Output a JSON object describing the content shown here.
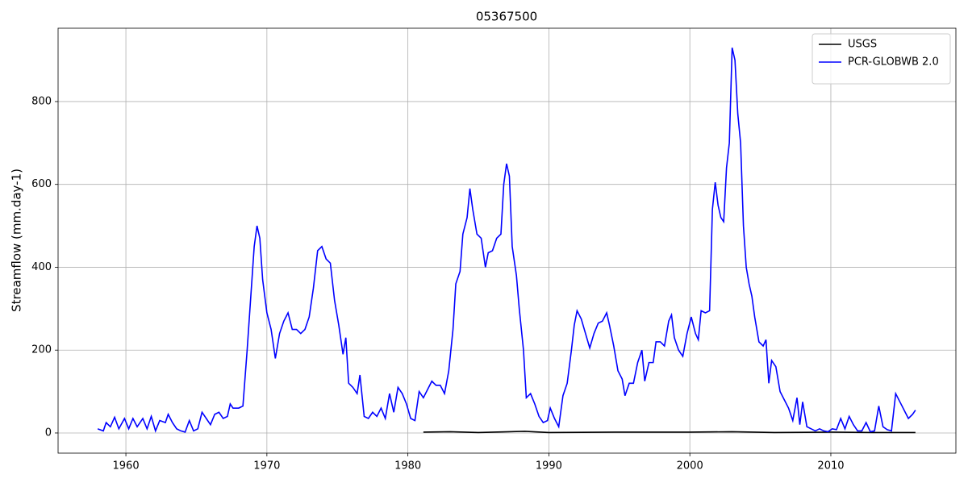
{
  "chart_data": {
    "type": "line",
    "title": "05367500",
    "y_label": "Streamflow (mm.day-1)",
    "xlim": [
      1955.19,
      2018.87
    ],
    "ylim": [
      -48.7,
      977
    ],
    "xticks": [
      1960,
      1970,
      1980,
      1990,
      2000,
      2010
    ],
    "yticks": [
      0,
      200,
      400,
      600,
      800
    ],
    "grid": true,
    "legend": "upper right",
    "series": [
      {
        "name": "USGS",
        "color": "#000000",
        "x": [
          1981.1,
          1983.0,
          1985.0,
          1988.3,
          1990.0,
          1995.0,
          2000.0,
          2003.0,
          2006.0,
          2010.0,
          2013.0,
          2016.0
        ],
        "values": [
          2,
          3,
          1,
          4,
          1,
          2,
          2,
          3,
          1,
          2,
          1,
          1
        ]
      },
      {
        "name": "PCR-GLOBWB 2.0",
        "color": "#0000ff",
        "x": [
          1958.0,
          1958.4,
          1958.6,
          1958.9,
          1959.2,
          1959.5,
          1959.9,
          1960.2,
          1960.5,
          1960.8,
          1961.2,
          1961.5,
          1961.8,
          1962.1,
          1962.4,
          1962.8,
          1963.0,
          1963.3,
          1963.6,
          1963.9,
          1964.2,
          1964.5,
          1964.8,
          1965.1,
          1965.4,
          1965.7,
          1966.0,
          1966.3,
          1966.6,
          1966.9,
          1967.2,
          1967.4,
          1967.6,
          1968.0,
          1968.3,
          1968.6,
          1968.9,
          1969.1,
          1969.3,
          1969.5,
          1969.7,
          1970.0,
          1970.3,
          1970.6,
          1970.9,
          1971.2,
          1971.5,
          1971.8,
          1972.1,
          1972.4,
          1972.7,
          1973.0,
          1973.3,
          1973.6,
          1973.9,
          1974.2,
          1974.5,
          1974.8,
          1975.1,
          1975.4,
          1975.6,
          1975.8,
          1976.1,
          1976.4,
          1976.6,
          1976.9,
          1977.2,
          1977.5,
          1977.8,
          1978.1,
          1978.4,
          1978.7,
          1979.0,
          1979.3,
          1979.6,
          1979.9,
          1980.2,
          1980.5,
          1980.8,
          1981.1,
          1981.4,
          1981.7,
          1982.0,
          1982.3,
          1982.6,
          1982.9,
          1983.2,
          1983.4,
          1983.7,
          1983.9,
          1984.2,
          1984.4,
          1984.6,
          1984.9,
          1985.2,
          1985.5,
          1985.7,
          1986.0,
          1986.3,
          1986.6,
          1986.8,
          1987.0,
          1987.2,
          1987.4,
          1987.7,
          1987.9,
          1988.2,
          1988.4,
          1988.7,
          1989.0,
          1989.3,
          1989.6,
          1989.9,
          1990.1,
          1990.4,
          1990.7,
          1991.0,
          1991.3,
          1991.6,
          1991.8,
          1992.0,
          1992.3,
          1992.6,
          1992.9,
          1993.2,
          1993.5,
          1993.8,
          1994.1,
          1994.3,
          1994.6,
          1994.9,
          1995.2,
          1995.4,
          1995.7,
          1996.0,
          1996.3,
          1996.6,
          1996.8,
          1997.1,
          1997.4,
          1997.6,
          1997.9,
          1998.2,
          1998.5,
          1998.7,
          1998.9,
          1999.2,
          1999.5,
          1999.8,
          2000.1,
          2000.4,
          2000.6,
          2000.8,
          2001.1,
          2001.4,
          2001.6,
          2001.8,
          2002.0,
          2002.2,
          2002.4,
          2002.6,
          2002.8,
          2003.0,
          2003.2,
          2003.4,
          2003.6,
          2003.8,
          2004.0,
          2004.2,
          2004.4,
          2004.6,
          2004.9,
          2005.2,
          2005.4,
          2005.6,
          2005.8,
          2006.1,
          2006.4,
          2006.7,
          2007.0,
          2007.3,
          2007.6,
          2007.8,
          2008.0,
          2008.3,
          2008.6,
          2008.9,
          2009.2,
          2009.5,
          2009.8,
          2010.1,
          2010.4,
          2010.7,
          2011.0,
          2011.3,
          2011.6,
          2011.9,
          2012.2,
          2012.5,
          2012.8,
          2013.1,
          2013.4,
          2013.7,
          2014.0,
          2014.3,
          2014.6,
          2014.9,
          2015.2,
          2015.5,
          2015.8,
          2016.0
        ],
        "values": [
          10,
          5,
          25,
          15,
          38,
          10,
          35,
          10,
          35,
          15,
          35,
          10,
          40,
          5,
          30,
          25,
          45,
          25,
          10,
          5,
          2,
          30,
          5,
          10,
          50,
          35,
          20,
          45,
          50,
          35,
          40,
          70,
          60,
          60,
          65,
          200,
          350,
          450,
          500,
          470,
          370,
          290,
          250,
          180,
          240,
          270,
          290,
          250,
          250,
          240,
          250,
          280,
          350,
          440,
          450,
          420,
          410,
          320,
          260,
          190,
          230,
          120,
          110,
          95,
          140,
          40,
          35,
          50,
          40,
          60,
          35,
          95,
          50,
          110,
          95,
          70,
          35,
          30,
          100,
          85,
          105,
          125,
          115,
          115,
          95,
          150,
          250,
          360,
          390,
          480,
          520,
          590,
          540,
          480,
          470,
          400,
          435,
          440,
          470,
          480,
          600,
          650,
          620,
          450,
          380,
          300,
          200,
          85,
          95,
          70,
          40,
          25,
          30,
          60,
          35,
          15,
          90,
          120,
          200,
          260,
          295,
          275,
          240,
          205,
          240,
          265,
          270,
          290,
          260,
          210,
          150,
          130,
          90,
          120,
          120,
          170,
          200,
          125,
          170,
          170,
          220,
          220,
          210,
          270,
          285,
          230,
          200,
          185,
          240,
          280,
          240,
          225,
          295,
          290,
          295,
          540,
          605,
          550,
          520,
          510,
          640,
          700,
          930,
          900,
          770,
          700,
          500,
          400,
          360,
          330,
          280,
          220,
          210,
          225,
          120,
          175,
          160,
          100,
          80,
          60,
          30,
          85,
          20,
          75,
          15,
          10,
          5,
          10,
          5,
          3,
          10,
          8,
          35,
          10,
          40,
          20,
          5,
          5,
          25,
          3,
          5,
          65,
          15,
          8,
          5,
          95,
          75,
          55,
          35,
          45,
          55
        ]
      }
    ]
  }
}
